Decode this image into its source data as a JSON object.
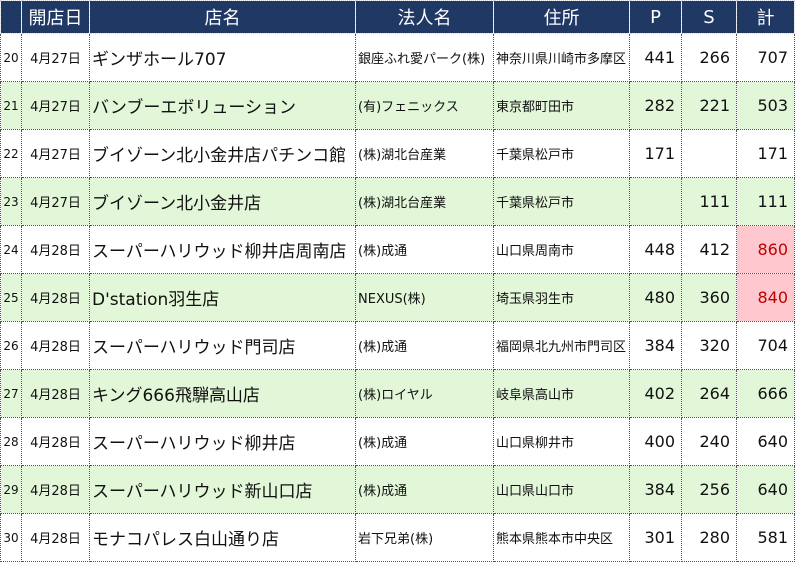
{
  "header": [
    "開店日",
    "店名",
    "法人名",
    "住所",
    "P",
    "S",
    "計"
  ],
  "rows": [
    {
      "no": "20",
      "date": "4月27日",
      "name": "ギンザホール707",
      "corp": "銀座ふれ愛パーク(株)",
      "addr": "神奈川県川崎市多摩区",
      "p": "441",
      "s": "266",
      "total": "707",
      "highlight": false
    },
    {
      "no": "21",
      "date": "4月27日",
      "name": "バンブーエボリューション",
      "corp": "(有)フェニックス",
      "addr": "東京都町田市",
      "p": "282",
      "s": "221",
      "total": "503",
      "highlight": false
    },
    {
      "no": "22",
      "date": "4月27日",
      "name": "ブイゾーン北小金井店パチンコ館",
      "corp": "(株)湖北台産業",
      "addr": "千葉県松戸市",
      "p": "171",
      "s": "",
      "total": "171",
      "highlight": false
    },
    {
      "no": "23",
      "date": "4月27日",
      "name": "ブイゾーン北小金井店",
      "corp": "(株)湖北台産業",
      "addr": "千葉県松戸市",
      "p": "",
      "s": "111",
      "total": "111",
      "highlight": false
    },
    {
      "no": "24",
      "date": "4月28日",
      "name": "スーパーハリウッド柳井店周南店",
      "corp": "(株)成通",
      "addr": "山口県周南市",
      "p": "448",
      "s": "412",
      "total": "860",
      "highlight": true
    },
    {
      "no": "25",
      "date": "4月28日",
      "name": "D'station羽生店",
      "corp": "NEXUS(株)",
      "addr": "埼玉県羽生市",
      "p": "480",
      "s": "360",
      "total": "840",
      "highlight": true
    },
    {
      "no": "26",
      "date": "4月28日",
      "name": "スーパーハリウッド門司店",
      "corp": "(株)成通",
      "addr": "福岡県北九州市門司区",
      "p": "384",
      "s": "320",
      "total": "704",
      "highlight": false
    },
    {
      "no": "27",
      "date": "4月28日",
      "name": "キング666飛騨高山店",
      "corp": "(株)ロイヤル",
      "addr": "岐阜県高山市",
      "p": "402",
      "s": "264",
      "total": "666",
      "highlight": false
    },
    {
      "no": "28",
      "date": "4月28日",
      "name": "スーパーハリウッド柳井店",
      "corp": "(株)成通",
      "addr": "山口県柳井市",
      "p": "400",
      "s": "240",
      "total": "640",
      "highlight": false
    },
    {
      "no": "29",
      "date": "4月28日",
      "name": "スーパーハリウッド新山口店",
      "corp": "(株)成通",
      "addr": "山口県山口市",
      "p": "384",
      "s": "256",
      "total": "640",
      "highlight": false
    },
    {
      "no": "30",
      "date": "4月28日",
      "name": "モナコパレス白山通り店",
      "corp": "岩下兄弟(株)",
      "addr": "熊本県熊本市中央区",
      "p": "301",
      "s": "280",
      "total": "581",
      "highlight": false
    }
  ]
}
